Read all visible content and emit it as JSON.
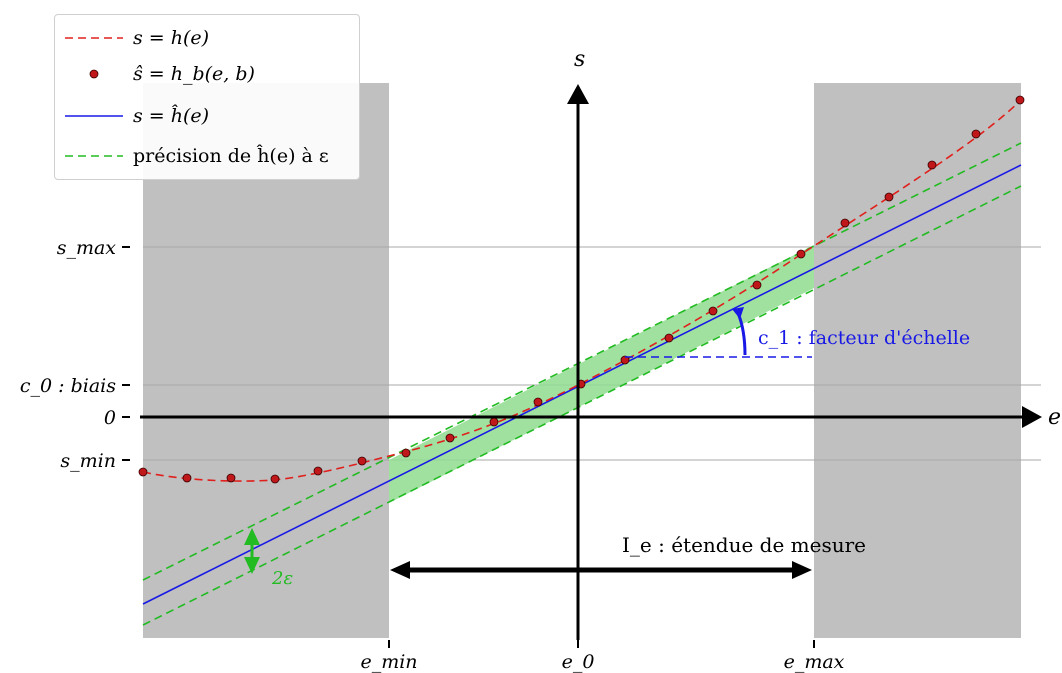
{
  "legend": [
    {
      "label": "s = h(e)",
      "style": "red-dashed",
      "color": "#e0201c"
    },
    {
      "label": "ŝ = h_b(e, b)",
      "style": "red-dots",
      "color": "#c0181a"
    },
    {
      "label": "s = ĥ(e)",
      "style": "blue-solid",
      "color": "#1919e6"
    },
    {
      "label": "précision de ĥ(e) à ε",
      "style": "green-dashed",
      "color": "#22bb22"
    }
  ],
  "axes": {
    "x_label": "e",
    "y_label": "s",
    "x_ticks": [
      "e_min",
      "e_0",
      "e_max"
    ],
    "y_ticks": [
      "s_max",
      "c_0 : biais",
      "0",
      "s_min"
    ]
  },
  "annotations": {
    "slope_label": "c_1 : facteur d'échelle",
    "epsilon_label": "2ε",
    "range_label": "I_e : étendue de mesure"
  },
  "colors": {
    "shade_gray": "#c0c0c0",
    "band_green": "#8fdc8f",
    "red": "#e0201c",
    "blue": "#1919e6",
    "green": "#22bb22",
    "axis": "#000000"
  }
}
